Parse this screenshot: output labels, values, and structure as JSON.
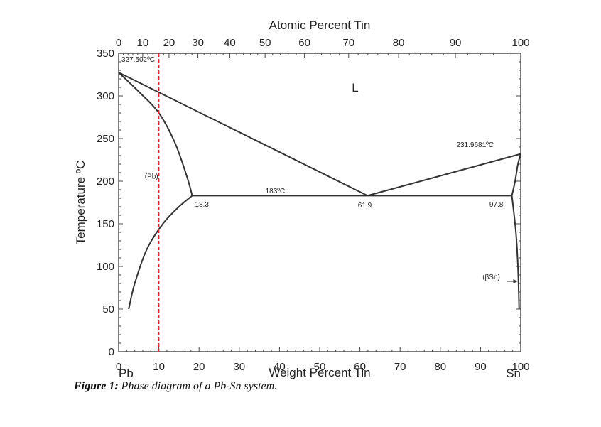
{
  "chart_data": {
    "type": "line",
    "title": "",
    "top_axis": {
      "label": "Atomic Percent Tin",
      "ticks": [
        0,
        10,
        20,
        30,
        40,
        50,
        60,
        70,
        80,
        90,
        100
      ]
    },
    "xlabel": "Weight Percent Tin",
    "ylabel": "Temperature ºC",
    "xlim": [
      0,
      100
    ],
    "ylim": [
      0,
      350
    ],
    "x_ticks": [
      0,
      10,
      20,
      30,
      40,
      50,
      60,
      70,
      80,
      90,
      100
    ],
    "y_ticks": [
      0,
      50,
      100,
      150,
      200,
      250,
      300,
      350
    ],
    "x_end_labels": {
      "left": "Pb",
      "right": "Sn"
    },
    "series": [
      {
        "x": [
          0,
          61.9
        ],
        "y": [
          327.502,
          183
        ]
      },
      {
        "x": [
          61.9,
          100
        ],
        "y": [
          183,
          231.9681
        ]
      },
      {
        "x": [
          0,
          5,
          10,
          14,
          17,
          18.3
        ],
        "y": [
          327.502,
          305,
          280,
          245,
          205,
          183
        ]
      },
      {
        "x": [
          18.3,
          97.8
        ],
        "y": [
          183,
          183
        ]
      },
      {
        "x": [
          18.3,
          15,
          11,
          7,
          4,
          2.5
        ],
        "y": [
          183,
          170,
          150,
          120,
          80,
          50
        ]
      },
      {
        "x": [
          97.8,
          98.8,
          99.3,
          99.5,
          99.6
        ],
        "y": [
          183,
          140,
          100,
          70,
          50
        ]
      },
      {
        "x": [
          100,
          99.3,
          98.6,
          97.8
        ],
        "y": [
          231.9681,
          220,
          200,
          183
        ]
      }
    ],
    "reference_line": {
      "x": 10,
      "color": "#e0262a",
      "style": "dashed"
    },
    "annotations": [
      {
        "text": "327.502ºC",
        "x": 0.7,
        "y": 340
      },
      {
        "text": "L",
        "x": 58,
        "y": 305
      },
      {
        "text": "231.9681ºC",
        "x": 84,
        "y": 240
      },
      {
        "text": "(Pb)",
        "x": 6.5,
        "y": 203
      },
      {
        "text": "183ºC",
        "x": 36.5,
        "y": 186
      },
      {
        "text": "18.3",
        "x": 19,
        "y": 170
      },
      {
        "text": "61.9",
        "x": 59.5,
        "y": 169
      },
      {
        "text": "97.8",
        "x": 92.2,
        "y": 170
      },
      {
        "text": "(βSn)",
        "x": 90.5,
        "y": 85
      }
    ],
    "grid": false
  },
  "caption": {
    "label": "Figure 1:",
    "text": " Phase diagram of a Pb-Sn system."
  }
}
